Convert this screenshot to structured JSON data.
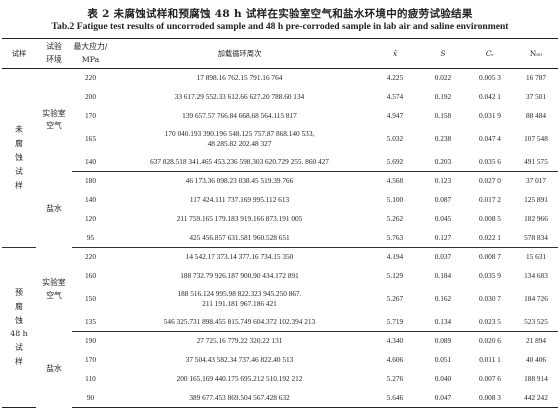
{
  "title_cn": "表 2   未腐蚀试样和预腐蚀 48 h 试样在实验室空气和盐水环境中的疲劳试验结果",
  "title_en": "Tab.2   Fatigue test results of uncorroded sample and 48 h pre-corroded sample in lab air and saline environment",
  "headers": {
    "specimen": "试样",
    "env_line1": "试验",
    "env_line2": "环境",
    "stress_line1": "最大应力/",
    "stress_line2": "MPa",
    "cycles": "加载循环周次",
    "xbar": "x̄",
    "s": "S",
    "cv": "Cᵥ",
    "n": "N₅₀"
  },
  "groups": [
    {
      "specimen": "未腐蚀试样",
      "environments": [
        {
          "env_line1": "实验室",
          "env_line2": "空气",
          "rows": [
            {
              "stress": "220",
              "cycles": [
                "17 898.16 762.15 791.16 764"
              ],
              "xbar": "4.225",
              "s": "0.022",
              "cv": "0.005 3",
              "n": "16 787"
            },
            {
              "stress": "200",
              "cycles": [
                "33 617.29 552.33 612.66 627.20 788.60 134"
              ],
              "xbar": "4.574",
              "s": "0.192",
              "cv": "0.042 1",
              "n": "37 501"
            },
            {
              "stress": "170",
              "cycles": [
                "139 657.57 766.84 668.68 564.115 817"
              ],
              "xbar": "4.947",
              "s": "0.158",
              "cv": "0.031 9",
              "n": "88 484"
            },
            {
              "stress": "165",
              "cycles": [
                "170 040.193 390.196 548.125 757.87 868.140 533,",
                "48 285.82 202.48 327"
              ],
              "xbar": "5.032",
              "s": "0.238",
              "cv": "0.047 4",
              "n": "107 548"
            },
            {
              "stress": "140",
              "cycles": [
                "637 828.518 341.465 453.236 598.303 620.729 255. 860 427"
              ],
              "xbar": "5.692",
              "s": "0.203",
              "cv": "0.035 6",
              "n": "491 575"
            }
          ]
        },
        {
          "env_line1": "盐水",
          "env_line2": "",
          "rows": [
            {
              "stress": "180",
              "cycles": [
                "46 173.36 098.23 038.45 519.39 766"
              ],
              "xbar": "4.568",
              "s": "0.123",
              "cv": "0.027 0",
              "n": "37 017"
            },
            {
              "stress": "140",
              "cycles": [
                "117 424.111 737.169 995.112 613"
              ],
              "xbar": "5.100",
              "s": "0.087",
              "cv": "0.017 2",
              "n": "125 891"
            },
            {
              "stress": "120",
              "cycles": [
                "211 759.165 179.183 919.166 873.191 005"
              ],
              "xbar": "5.262",
              "s": "0.045",
              "cv": "0.008 5",
              "n": "182 966"
            },
            {
              "stress": "95",
              "cycles": [
                "425 456.857 631.581 960.528 651"
              ],
              "xbar": "5.763",
              "s": "0.127",
              "cv": "0.022 1",
              "n": "578 834"
            }
          ]
        }
      ]
    },
    {
      "specimen": "预腐蚀",
      "specimen2": "48 h",
      "specimen3": "试样",
      "environments": [
        {
          "env_line1": "实验室",
          "env_line2": "空气",
          "rows": [
            {
              "stress": "220",
              "cycles": [
                "14 542.17 373.14 377.16 734.15 350"
              ],
              "xbar": "4.194",
              "s": "0.037",
              "cv": "0.008 7",
              "n": "15 631"
            },
            {
              "stress": "160",
              "cycles": [
                "188 732.79 926.187 900.90 434.172 891"
              ],
              "xbar": "5.129",
              "s": "0.184",
              "cv": "0.035 9",
              "n": "134 683"
            },
            {
              "stress": "150",
              "cycles": [
                "188 516.124 995.98 822.323 945.250 867.",
                "211 191.181 967.186 421"
              ],
              "xbar": "5.267",
              "s": "0.162",
              "cv": "0.030 7",
              "n": "184 726"
            },
            {
              "stress": "135",
              "cycles": [
                "546 325.731 898.455 815.749 604.372 102.394 213"
              ],
              "xbar": "5.719",
              "s": "0.134",
              "cv": "0.023 5",
              "n": "523 525"
            }
          ]
        },
        {
          "env_line1": "盐水",
          "env_line2": "",
          "rows": [
            {
              "stress": "190",
              "cycles": [
                "27 725.16 779.22 320.22 131"
              ],
              "xbar": "4.340",
              "s": "0.089",
              "cv": "0.020 6",
              "n": "21 894"
            },
            {
              "stress": "170",
              "cycles": [
                "37 504.43 582.34 737.46 822.40 513"
              ],
              "xbar": "4.606",
              "s": "0.051",
              "cv": "0.011 1",
              "n": "40 406"
            },
            {
              "stress": "110",
              "cycles": [
                "200 165.169 440.175 695.212 510.192 212"
              ],
              "xbar": "5.276",
              "s": "0.040",
              "cv": "0.007 6",
              "n": "188 914"
            },
            {
              "stress": "90",
              "cycles": [
                "389 677.453 869.504 567.428 632"
              ],
              "xbar": "5.646",
              "s": "0.047",
              "cv": "0.008 3",
              "n": "442 242"
            }
          ]
        }
      ]
    }
  ]
}
